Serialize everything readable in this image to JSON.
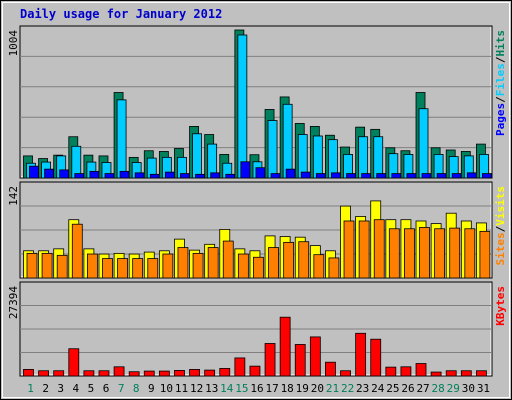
{
  "chart_data": {
    "type": "bar",
    "title": "Daily usage for January 2012",
    "categories": [
      "1",
      "2",
      "3",
      "4",
      "5",
      "6",
      "7",
      "8",
      "9",
      "10",
      "11",
      "12",
      "13",
      "14",
      "15",
      "16",
      "17",
      "18",
      "19",
      "20",
      "21",
      "22",
      "23",
      "24",
      "25",
      "26",
      "27",
      "28",
      "29",
      "30",
      "31"
    ],
    "weekend_days": [
      "1",
      "7",
      "8",
      "14",
      "15",
      "21",
      "22",
      "28",
      "29"
    ],
    "colors": {
      "background": "#c0c0c0",
      "hits": "#00805c",
      "files": "#00ccff",
      "pages": "#0000ff",
      "visits": "#ffff00",
      "sites": "#ff8000",
      "kbytes": "#ff0000",
      "title": "#0000cc",
      "weekday_label": "#000000",
      "weekend_label": "#00805c"
    },
    "panels": [
      {
        "id": "hits",
        "ymax_label": "1004",
        "ylim": [
          0,
          1004
        ],
        "legend": [
          "Pages",
          "/",
          "Files",
          "/",
          "Hits"
        ],
        "series": [
          {
            "name": "Hits",
            "values": [
              150,
              132,
              155,
              280,
              155,
              150,
              580,
              140,
              185,
              180,
              200,
              350,
              295,
              160,
              1004,
              158,
              465,
              550,
              370,
              350,
              290,
              210,
              345,
              330,
              205,
              185,
              580,
              205,
              190,
              180,
              230
            ]
          },
          {
            "name": "Files",
            "values": [
              100,
              108,
              150,
              215,
              108,
              105,
              530,
              105,
              135,
              140,
              140,
              300,
              230,
              100,
              970,
              110,
              390,
              500,
              295,
              285,
              260,
              160,
              280,
              280,
              165,
              160,
              470,
              160,
              145,
              150,
              160
            ]
          },
          {
            "name": "Pages",
            "values": [
              80,
              60,
              55,
              30,
              45,
              30,
              45,
              35,
              25,
              40,
              30,
              25,
              35,
              25,
              110,
              70,
              30,
              60,
              40,
              30,
              35,
              30,
              30,
              30,
              30,
              30,
              30,
              30,
              30,
              35,
              30
            ]
          }
        ]
      },
      {
        "id": "visits",
        "ymax_label": "142",
        "ylim": [
          0,
          142
        ],
        "legend": [
          "Sites",
          "/",
          "Visits"
        ],
        "series": [
          {
            "name": "Visits",
            "values": [
              42,
              42,
              45,
              90,
              45,
              37,
              38,
              37,
              40,
              42,
              60,
              43,
              52,
              75,
              45,
              42,
              65,
              64,
              63,
              50,
              42,
              111,
              95,
              119,
              90,
              90,
              88,
              84,
              100,
              88,
              85
            ]
          },
          {
            "name": "Sites",
            "values": [
              38,
              38,
              35,
              83,
              37,
              30,
              30,
              30,
              30,
              37,
              47,
              38,
              47,
              57,
              37,
              32,
              47,
              55,
              56,
              36,
              31,
              88,
              88,
              90,
              76,
              76,
              78,
              76,
              77,
              76,
              72
            ]
          }
        ]
      },
      {
        "id": "kbytes",
        "ymax_label": "27394",
        "ylim": [
          0,
          27394
        ],
        "legend": [
          "KBytes"
        ],
        "series": [
          {
            "name": "KBytes",
            "values": [
              2000,
              1600,
              1600,
              8300,
              1600,
              1600,
              2800,
              1300,
              1500,
              1500,
              1700,
              2000,
              1800,
              2300,
              5500,
              3000,
              9900,
              17900,
              9600,
              11900,
              4200,
              1600,
              13000,
              11200,
              2700,
              2800,
              3800,
              1200,
              1600,
              1600,
              1600
            ]
          }
        ]
      }
    ]
  }
}
